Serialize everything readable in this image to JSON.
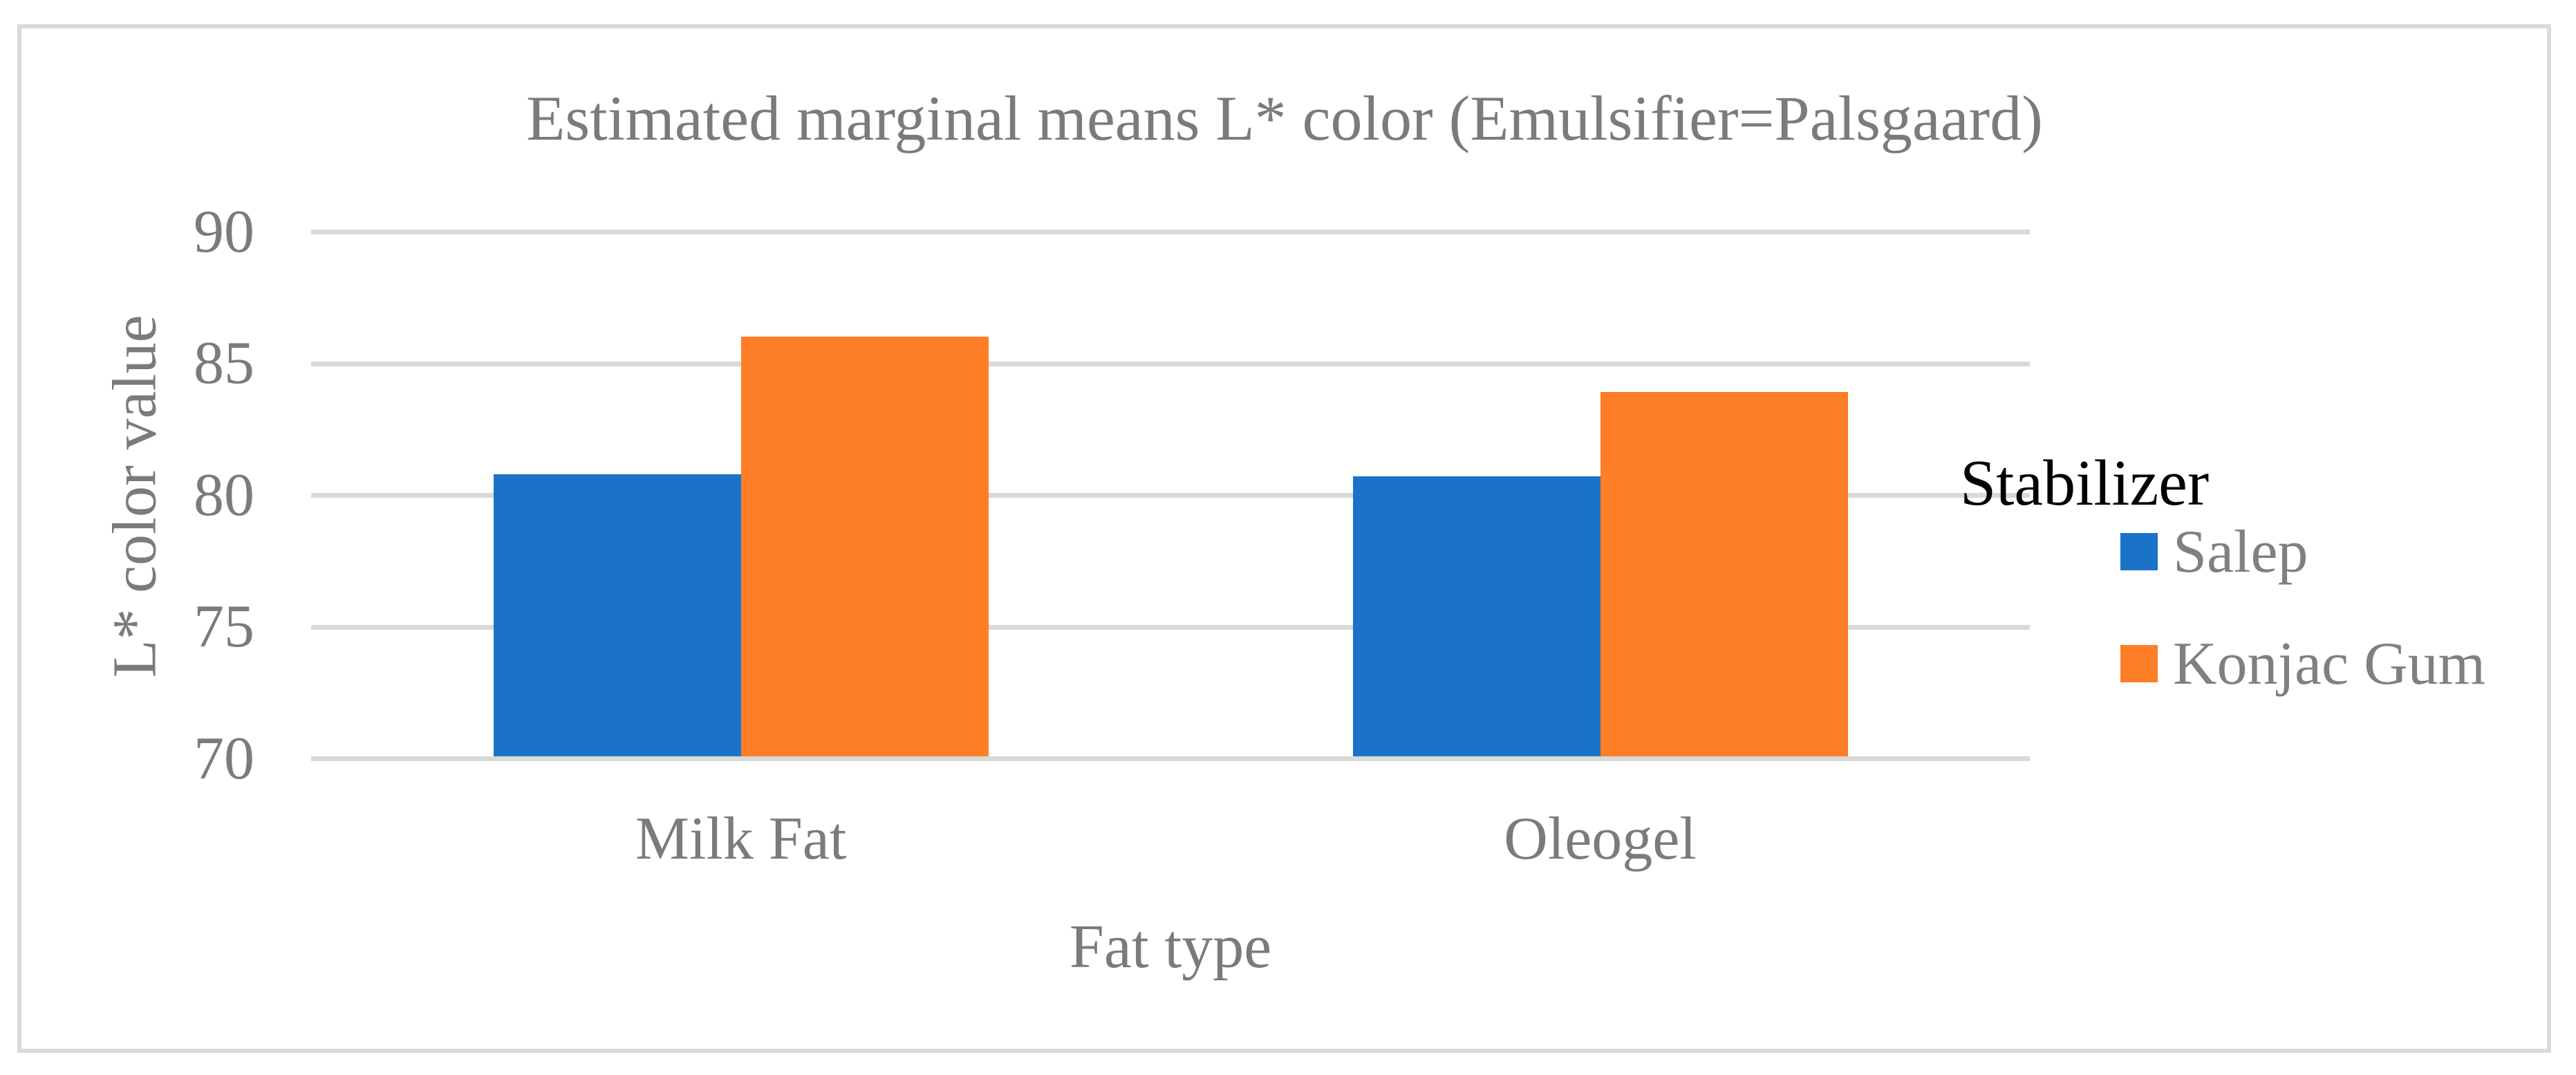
{
  "figure": {
    "background_color": "#FFFFFF",
    "border_color": "#DADADA"
  },
  "chart_data": {
    "type": "bar",
    "title": "Estimated marginal means L* color (Emulsifier=Palsgaard)",
    "xlabel": "Fat type",
    "ylabel": "L* color value",
    "categories": [
      "Milk Fat",
      "Oleogel"
    ],
    "series": [
      {
        "name": "Salep",
        "color": "#1B73C8",
        "values": [
          80.8,
          80.7
        ]
      },
      {
        "name": "Konjac Gum",
        "color": "#FD7E27",
        "values": [
          86.0,
          83.9
        ]
      }
    ],
    "legend": {
      "title": "Stabilizer",
      "position": "right"
    },
    "ylim": [
      70,
      90
    ],
    "yticks": [
      70,
      75,
      80,
      85,
      90
    ],
    "grid": "horizontal-only",
    "gridline_color": "#D9D9D9",
    "axis_text_color": "#7B7B7B",
    "legend_title_color": "#000000"
  }
}
